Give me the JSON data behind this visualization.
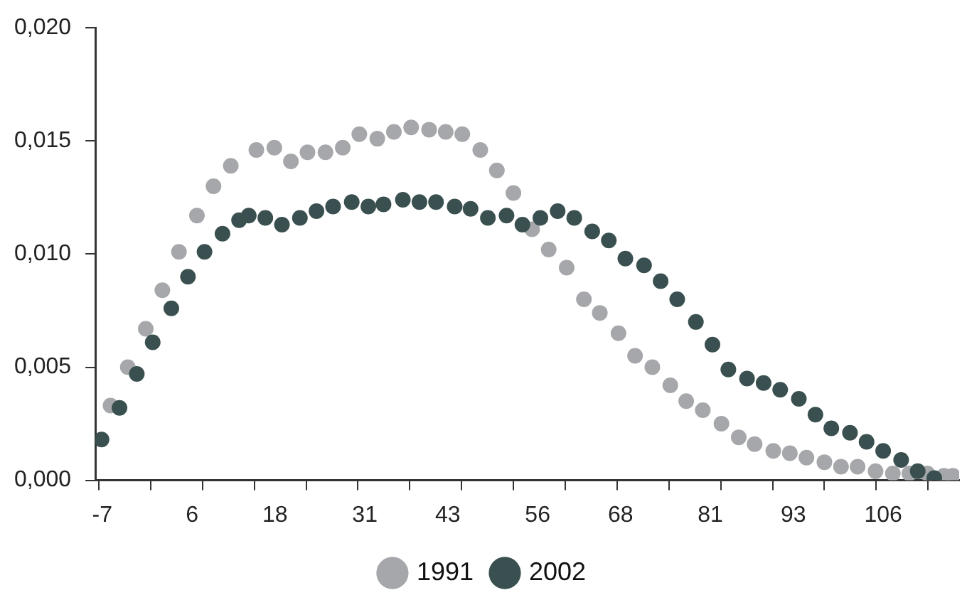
{
  "chart_data": {
    "type": "scatter",
    "marker": "circle",
    "grid": false,
    "legend": "bottom",
    "xlim": [
      -8,
      117
    ],
    "xticks": [
      {
        "value": -7.5,
        "label": null
      },
      {
        "value": 0,
        "label": null
      },
      {
        "value": 7.5,
        "label": null
      },
      {
        "value": 15,
        "label": null
      },
      {
        "value": 22.5,
        "label": null
      },
      {
        "value": 30,
        "label": null
      },
      {
        "value": 37.5,
        "label": null
      },
      {
        "value": 45,
        "label": null
      },
      {
        "value": 52.5,
        "label": null
      },
      {
        "value": 60,
        "label": null
      },
      {
        "value": 67.5,
        "label": null
      },
      {
        "value": 75,
        "label": null
      },
      {
        "value": 82.5,
        "label": null
      },
      {
        "value": 90,
        "label": null
      },
      {
        "value": 97.5,
        "label": null
      },
      {
        "value": 105,
        "label": null
      },
      {
        "value": 112.5,
        "label": null
      },
      -7,
      6,
      18,
      31,
      43,
      56,
      68,
      81,
      93,
      106
    ],
    "ylim": [
      0,
      0.02
    ],
    "yticks": [
      {
        "value": 0,
        "label": "0,000"
      },
      {
        "value": 0.005,
        "label": "0,005"
      },
      {
        "value": 0.01,
        "label": "0,010"
      },
      {
        "value": 0.015,
        "label": "0,015"
      },
      {
        "value": 0.02,
        "label": "0,020"
      }
    ],
    "series": [
      {
        "name": "1991",
        "color": "#a6a7aa",
        "x": [
          -5.8,
          -3.3,
          -0.7,
          1.7,
          4.1,
          6.7,
          9.1,
          11.6,
          15.3,
          17.9,
          20.3,
          22.7,
          25.3,
          27.8,
          30.2,
          32.8,
          35.2,
          37.7,
          40.3,
          42.7,
          45.1,
          47.7,
          50.1,
          52.5,
          55.2,
          57.6,
          60.2,
          62.7,
          65.0,
          67.7,
          70.1,
          72.6,
          75.2,
          77.5,
          79.9,
          82.6,
          85.1,
          87.4,
          90.1,
          92.5,
          94.9,
          97.5,
          99.9,
          102.3,
          104.9,
          107.4,
          109.8,
          112.4,
          114.8,
          116.1
        ],
        "values": [
          0.0033,
          0.005,
          0.0067,
          0.0084,
          0.0101,
          0.0117,
          0.013,
          0.0139,
          0.0146,
          0.0147,
          0.0141,
          0.0145,
          0.0145,
          0.0147,
          0.0153,
          0.0151,
          0.0154,
          0.0156,
          0.0155,
          0.0154,
          0.0153,
          0.0146,
          0.0137,
          0.0127,
          0.0111,
          0.0102,
          0.0094,
          0.008,
          0.0074,
          0.0065,
          0.0055,
          0.005,
          0.0042,
          0.0035,
          0.0031,
          0.0025,
          0.0019,
          0.0016,
          0.0013,
          0.0012,
          0.001,
          0.0008,
          0.0006,
          0.0006,
          0.0004,
          0.0003,
          0.0003,
          0.0003,
          0.0002,
          0.0002
        ]
      },
      {
        "name": "2002",
        "color": "#3a4f4f",
        "x": [
          -7.1,
          -4.5,
          -2.0,
          0.3,
          3.0,
          5.4,
          7.8,
          10.4,
          12.8,
          14.2,
          16.6,
          19.0,
          21.6,
          24.0,
          26.4,
          29.1,
          31.5,
          33.7,
          36.5,
          38.9,
          41.3,
          44.0,
          46.3,
          48.8,
          51.5,
          53.8,
          56.4,
          58.9,
          61.3,
          63.9,
          66.3,
          68.7,
          71.4,
          73.8,
          76.2,
          78.9,
          81.3,
          83.6,
          86.3,
          88.7,
          91.1,
          93.8,
          96.2,
          98.5,
          101.2,
          103.6,
          106.0,
          108.6,
          111.0,
          113.4
        ],
        "values": [
          0.0018,
          0.0032,
          0.0047,
          0.0061,
          0.0076,
          0.009,
          0.0101,
          0.0109,
          0.0115,
          0.0117,
          0.0116,
          0.0113,
          0.0116,
          0.0119,
          0.0121,
          0.0123,
          0.0121,
          0.0122,
          0.0124,
          0.0123,
          0.0123,
          0.0121,
          0.012,
          0.0116,
          0.0117,
          0.0113,
          0.0116,
          0.0119,
          0.0116,
          0.011,
          0.0106,
          0.0098,
          0.0095,
          0.0088,
          0.008,
          0.007,
          0.006,
          0.0049,
          0.0045,
          0.0043,
          0.004,
          0.0036,
          0.0029,
          0.0023,
          0.0021,
          0.0017,
          0.0013,
          0.0009,
          0.0004,
          0.0001
        ]
      }
    ]
  }
}
